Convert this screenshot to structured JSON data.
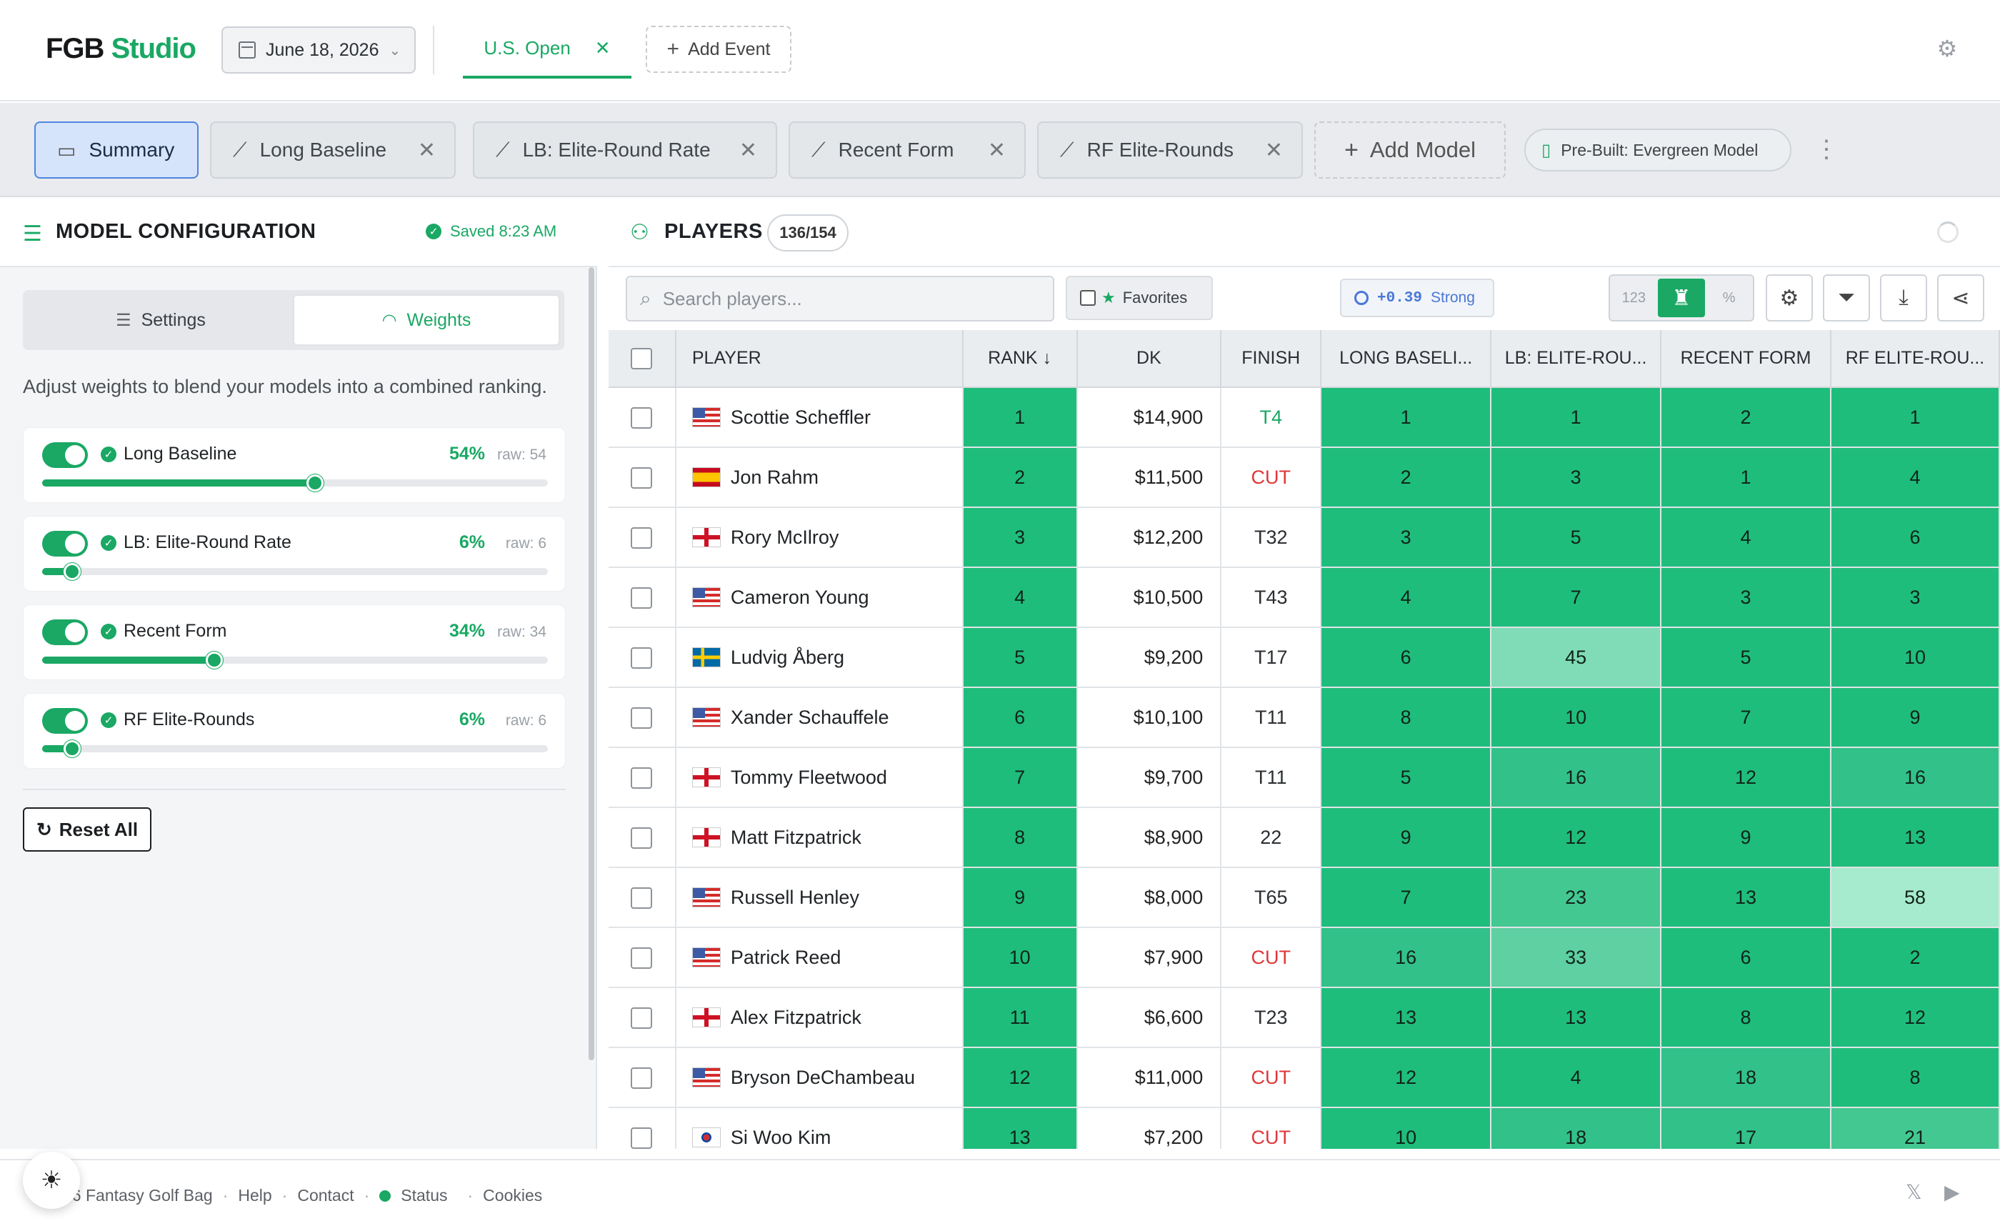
{
  "brand": {
    "part1": "FGB",
    "part2": "Studio"
  },
  "date_picker": {
    "value": "June 18, 2026",
    "icon": "calendar-icon"
  },
  "events": {
    "active": "U.S. Open",
    "add_label": "Add Event"
  },
  "models": {
    "tabs": [
      {
        "label": "Summary",
        "icon": "inbox-icon",
        "active": true
      },
      {
        "label": "Long Baseline",
        "icon": "line-chart-icon"
      },
      {
        "label": "LB: Elite-Round Rate",
        "icon": "line-chart-icon"
      },
      {
        "label": "Recent Form",
        "icon": "line-chart-icon"
      },
      {
        "label": "RF Elite-Rounds",
        "icon": "line-chart-icon"
      }
    ],
    "add_label": "Add Model",
    "prebuilt_label": "Pre-Built: Evergreen Model"
  },
  "config": {
    "title": "MODEL CONFIGURATION",
    "saved": "Saved 8:23 AM",
    "segments": {
      "settings": "Settings",
      "weights": "Weights"
    },
    "hint": "Adjust weights to blend your models into a combined ranking.",
    "weights": [
      {
        "name": "Long Baseline",
        "pct": "54%",
        "raw": "raw: 54",
        "value": 0.54
      },
      {
        "name": "LB: Elite-Round Rate",
        "pct": "6%",
        "raw": "raw: 6",
        "value": 0.06
      },
      {
        "name": "Recent Form",
        "pct": "34%",
        "raw": "raw: 34",
        "value": 0.34
      },
      {
        "name": "RF Elite-Rounds",
        "pct": "6%",
        "raw": "raw: 6",
        "value": 0.06
      }
    ],
    "reset_label": "Reset All"
  },
  "players": {
    "title": "PLAYERS",
    "count": "136/154",
    "search_placeholder": "Search players...",
    "favorites_label": "Favorites",
    "strength_value": "+0.39",
    "strength_label": "Strong",
    "view_number": "123",
    "columns": [
      "PLAYER",
      "RANK",
      "DK",
      "FINISH",
      "LONG BASELI...",
      "LB: ELITE-ROU...",
      "RECENT FORM",
      "RF ELITE-ROU..."
    ],
    "rows": [
      {
        "name": "Scottie Scheffler",
        "flag": "us",
        "rank": "1",
        "dk": "$14,900",
        "finish": "T4",
        "lb": "1",
        "lber": "1",
        "rf": "2",
        "rfer": "1"
      },
      {
        "name": "Jon Rahm",
        "flag": "es",
        "rank": "2",
        "dk": "$11,500",
        "finish": "CUT",
        "lb": "2",
        "lber": "3",
        "rf": "1",
        "rfer": "4"
      },
      {
        "name": "Rory McIlroy",
        "flag": "gb",
        "rank": "3",
        "dk": "$12,200",
        "finish": "T32",
        "lb": "3",
        "lber": "5",
        "rf": "4",
        "rfer": "6"
      },
      {
        "name": "Cameron Young",
        "flag": "us",
        "rank": "4",
        "dk": "$10,500",
        "finish": "T43",
        "lb": "4",
        "lber": "7",
        "rf": "3",
        "rfer": "3"
      },
      {
        "name": "Ludvig Åberg",
        "flag": "se",
        "rank": "5",
        "dk": "$9,200",
        "finish": "T17",
        "lb": "6",
        "lber": "45",
        "rf": "5",
        "rfer": "10"
      },
      {
        "name": "Xander Schauffele",
        "flag": "us",
        "rank": "6",
        "dk": "$10,100",
        "finish": "T11",
        "lb": "8",
        "lber": "10",
        "rf": "7",
        "rfer": "9"
      },
      {
        "name": "Tommy Fleetwood",
        "flag": "gb",
        "rank": "7",
        "dk": "$9,700",
        "finish": "T11",
        "lb": "5",
        "lber": "16",
        "rf": "12",
        "rfer": "16"
      },
      {
        "name": "Matt Fitzpatrick",
        "flag": "gb",
        "rank": "8",
        "dk": "$8,900",
        "finish": "22",
        "lb": "9",
        "lber": "12",
        "rf": "9",
        "rfer": "13"
      },
      {
        "name": "Russell Henley",
        "flag": "us",
        "rank": "9",
        "dk": "$8,000",
        "finish": "T65",
        "lb": "7",
        "lber": "23",
        "rf": "13",
        "rfer": "58"
      },
      {
        "name": "Patrick Reed",
        "flag": "us",
        "rank": "10",
        "dk": "$7,900",
        "finish": "CUT",
        "lb": "16",
        "lber": "33",
        "rf": "6",
        "rfer": "2"
      },
      {
        "name": "Alex Fitzpatrick",
        "flag": "gb",
        "rank": "11",
        "dk": "$6,600",
        "finish": "T23",
        "lb": "13",
        "lber": "13",
        "rf": "8",
        "rfer": "12"
      },
      {
        "name": "Bryson DeChambeau",
        "flag": "us",
        "rank": "12",
        "dk": "$11,000",
        "finish": "CUT",
        "lb": "12",
        "lber": "4",
        "rf": "18",
        "rfer": "8"
      },
      {
        "name": "Si Woo Kim",
        "flag": "kr",
        "rank": "13",
        "dk": "$7,200",
        "finish": "CUT",
        "lb": "10",
        "lber": "18",
        "rf": "17",
        "rfer": "21"
      }
    ]
  },
  "footer": {
    "copyright": "26 Fantasy Golf Bag",
    "links": [
      "Help",
      "Contact",
      "Status",
      "Cookies"
    ]
  }
}
